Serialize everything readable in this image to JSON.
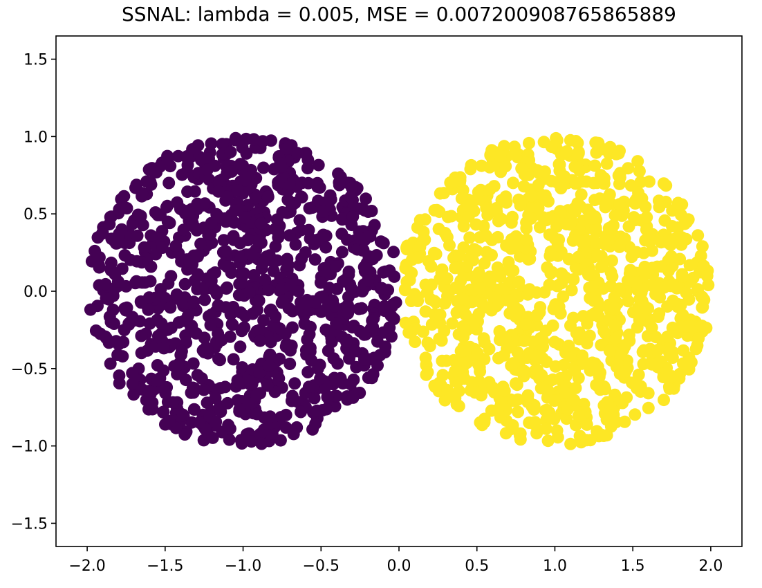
{
  "chart_data": {
    "type": "scatter",
    "title": "SSNAL: lambda = 0.005, MSE = 0.007200908765865889",
    "xlabel": "",
    "ylabel": "",
    "xlim": [
      -2.2,
      2.2
    ],
    "ylim": [
      -1.65,
      1.65
    ],
    "grid": false,
    "legend": "none",
    "x_ticks": [
      -2.0,
      -1.5,
      -1.0,
      -0.5,
      0.0,
      0.5,
      1.0,
      1.5,
      2.0
    ],
    "x_tick_labels": [
      "−2.0",
      "−1.5",
      "−1.0",
      "−0.5",
      "0.0",
      "0.5",
      "1.0",
      "1.5",
      "2.0"
    ],
    "y_ticks": [
      1.5,
      1.0,
      0.5,
      0.0,
      -0.5,
      -1.0,
      -1.5
    ],
    "y_tick_labels": [
      "1.5",
      "1.0",
      "0.5",
      "0.0",
      "−0.5",
      "−1.0",
      "−1.5"
    ],
    "series": [
      {
        "color": "#440154",
        "distribution": "uniform-disk",
        "center": [
          -1.0,
          0.0
        ],
        "radius": 1.0,
        "count": 1000
      },
      {
        "color": "#fde725",
        "distribution": "uniform-disk",
        "center": [
          1.0,
          0.0
        ],
        "radius": 1.0,
        "count": 1000
      }
    ]
  }
}
